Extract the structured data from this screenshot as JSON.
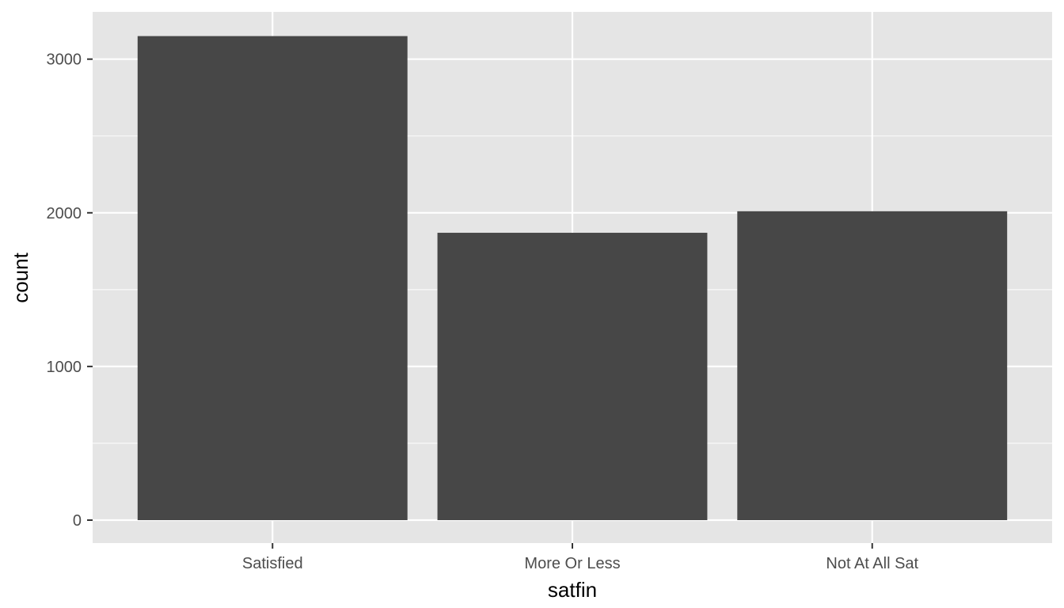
{
  "chart_data": {
    "type": "bar",
    "categories": [
      "Satisfied",
      "More Or Less",
      "Not At All Sat"
    ],
    "values": [
      3150,
      1870,
      2010
    ],
    "xlabel": "satfin",
    "ylabel": "count",
    "ylim": [
      0,
      3300
    ],
    "yticks": [
      0,
      1000,
      2000,
      3000
    ],
    "ytick_labels": [
      "0",
      "1000",
      "2000",
      "3000"
    ],
    "y_minor_gridlines": [
      500,
      1500,
      2500
    ],
    "grid": true,
    "legend": "none",
    "colors": {
      "panel_background": "#e5e5e5",
      "gridline": "#ffffff",
      "bar_fill": "#474747",
      "tick_mark": "#333333",
      "tick_label": "#4d4d4d",
      "axis_title": "#000000"
    }
  }
}
